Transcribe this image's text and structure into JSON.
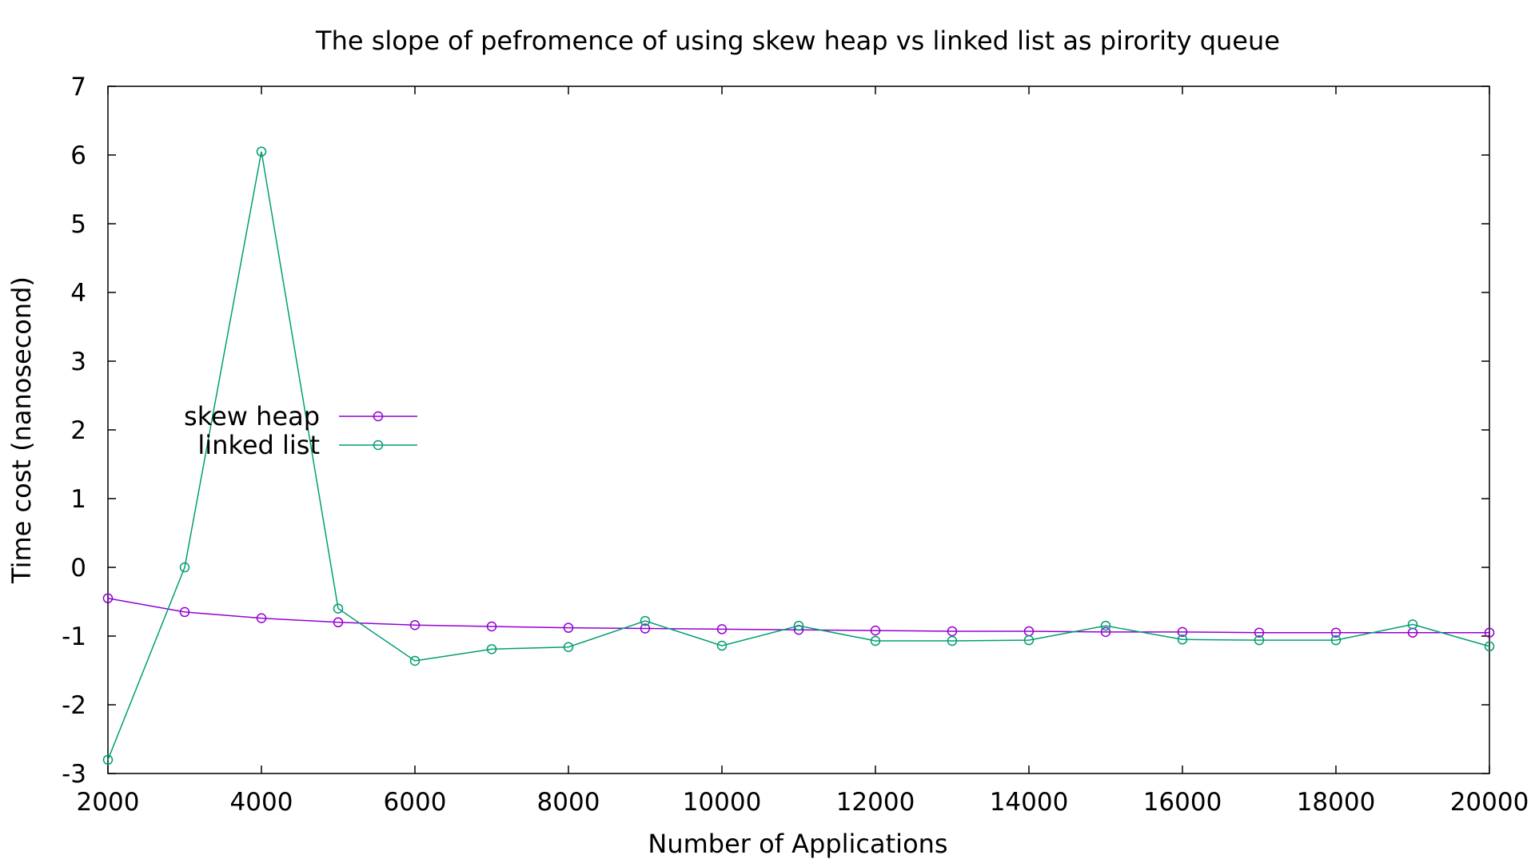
{
  "chart_data": {
    "type": "line",
    "title": "The slope of pefromence of using skew heap vs linked list as pirority queue",
    "xlabel": "Number of Applications",
    "ylabel": "Time cost (nanosecond)",
    "xlim": [
      2000,
      20000
    ],
    "ylim": [
      -3,
      7
    ],
    "xticks": [
      2000,
      4000,
      6000,
      8000,
      10000,
      12000,
      14000,
      16000,
      18000,
      20000
    ],
    "yticks": [
      -3,
      -2,
      -1,
      0,
      1,
      2,
      3,
      4,
      5,
      6,
      7
    ],
    "grid": false,
    "legend_position": "left-middle",
    "x": [
      2000,
      3000,
      4000,
      5000,
      6000,
      7000,
      8000,
      9000,
      10000,
      11000,
      12000,
      13000,
      14000,
      15000,
      16000,
      17000,
      18000,
      19000,
      20000
    ],
    "series": [
      {
        "name": "skew heap",
        "color": "#9400d3",
        "marker": "circle",
        "values": [
          -0.45,
          -0.65,
          -0.74,
          -0.8,
          -0.84,
          -0.86,
          -0.88,
          -0.89,
          -0.9,
          -0.91,
          -0.92,
          -0.93,
          -0.93,
          -0.94,
          -0.94,
          -0.95,
          -0.95,
          -0.95,
          -0.95
        ]
      },
      {
        "name": "linked list",
        "color": "#009e73",
        "marker": "circle",
        "values": [
          -2.8,
          0.0,
          6.05,
          -0.6,
          -1.36,
          -1.19,
          -1.16,
          -0.78,
          -1.14,
          -0.85,
          -1.07,
          -1.07,
          -1.06,
          -0.85,
          -1.05,
          -1.06,
          -1.06,
          -0.83,
          -1.15
        ]
      }
    ]
  }
}
